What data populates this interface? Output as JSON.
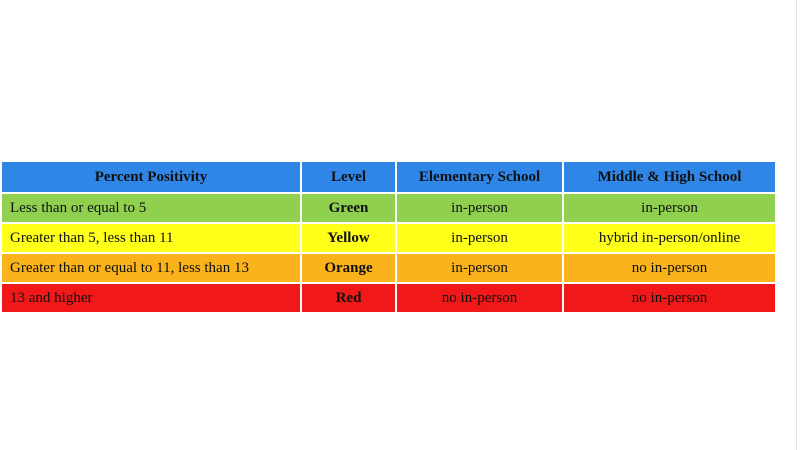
{
  "table": {
    "headers": [
      "Percent Positivity",
      "Level",
      "Elementary School",
      "Middle & High School"
    ],
    "rows": [
      {
        "positivity": "Less than or equal to 5",
        "level": "Green",
        "elementary": "in-person",
        "middle_high": "in-person",
        "color": "#8fd14f"
      },
      {
        "positivity": "Greater than 5, less than 11",
        "level": "Yellow",
        "elementary": "in-person",
        "middle_high": "hybrid in-person/online",
        "color": "#ffff1a"
      },
      {
        "positivity": "Greater than or equal to 11, less than 13",
        "level": "Orange",
        "elementary": "in-person",
        "middle_high": "no in-person",
        "color": "#fbb31c"
      },
      {
        "positivity": "13 and higher",
        "level": "Red",
        "elementary": "no in-person",
        "middle_high": "no in-person",
        "color": "#f01818"
      }
    ],
    "header_color": "#2f86e6"
  }
}
